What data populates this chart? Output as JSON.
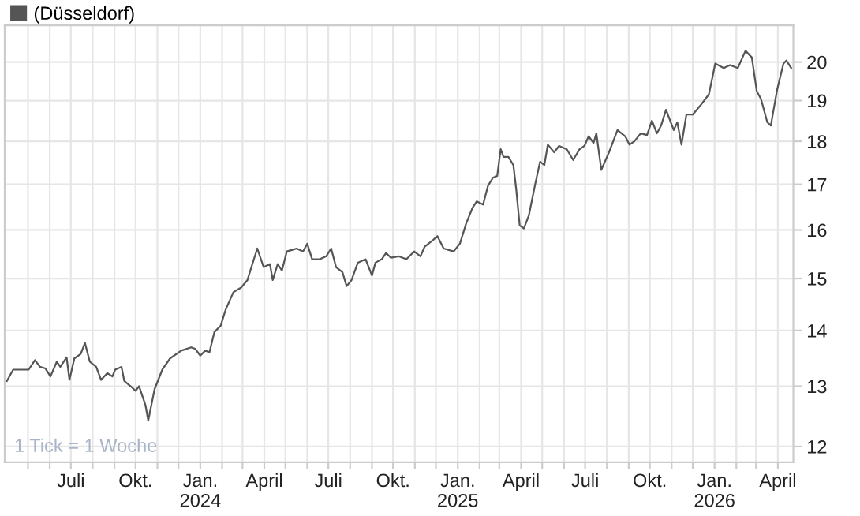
{
  "chart_data": {
    "type": "line",
    "log": "y",
    "grid": true,
    "legend": "top left",
    "marker": "none",
    "line_style": "solid",
    "annotations": [
      "1 Tick = 1 Woche"
    ],
    "xlim": [
      "2023-03-29",
      "2026-04-23"
    ],
    "ylim": [
      11.75,
      21.0
    ],
    "yticks": [
      12,
      13,
      14,
      15,
      16,
      17,
      18,
      19,
      20
    ],
    "xticks": [
      {
        "value": "2023-05-01",
        "label": null
      },
      {
        "value": "2023-06-01",
        "label": null
      },
      {
        "value": "2023-07-01",
        "label": "Juli"
      },
      {
        "value": "2023-08-01",
        "label": null
      },
      {
        "value": "2023-09-01",
        "label": null
      },
      {
        "value": "2023-10-01",
        "label": "Okt."
      },
      {
        "value": "2023-11-01",
        "label": null
      },
      {
        "value": "2023-12-01",
        "label": null
      },
      {
        "value": "2024-01-01",
        "label": "Jan.\n2024"
      },
      {
        "value": "2024-02-01",
        "label": null
      },
      {
        "value": "2024-03-01",
        "label": null
      },
      {
        "value": "2024-04-01",
        "label": "April"
      },
      {
        "value": "2024-05-01",
        "label": null
      },
      {
        "value": "2024-06-01",
        "label": null
      },
      {
        "value": "2024-07-01",
        "label": "Juli"
      },
      {
        "value": "2024-08-01",
        "label": null
      },
      {
        "value": "2024-09-01",
        "label": null
      },
      {
        "value": "2024-10-01",
        "label": "Okt."
      },
      {
        "value": "2024-11-01",
        "label": null
      },
      {
        "value": "2024-12-01",
        "label": null
      },
      {
        "value": "2025-01-01",
        "label": "Jan.\n2025"
      },
      {
        "value": "2025-02-01",
        "label": null
      },
      {
        "value": "2025-03-01",
        "label": null
      },
      {
        "value": "2025-04-01",
        "label": "April"
      },
      {
        "value": "2025-05-01",
        "label": null
      },
      {
        "value": "2025-06-01",
        "label": null
      },
      {
        "value": "2025-07-01",
        "label": "Juli"
      },
      {
        "value": "2025-08-01",
        "label": null
      },
      {
        "value": "2025-09-01",
        "label": null
      },
      {
        "value": "2025-10-01",
        "label": "Okt."
      },
      {
        "value": "2025-11-01",
        "label": null
      },
      {
        "value": "2025-12-01",
        "label": null
      },
      {
        "value": "2026-01-01",
        "label": "Jan.\n2026"
      },
      {
        "value": "2026-02-01",
        "label": null
      },
      {
        "value": "2026-03-01",
        "label": null
      },
      {
        "value": "2026-04-01",
        "label": "April"
      }
    ],
    "series": [
      {
        "name": "(Düsseldorf)",
        "color": "#555555",
        "x": [
          "2023-04-01",
          "2023-04-10",
          "2023-04-26",
          "2023-05-02",
          "2023-05-11",
          "2023-05-18",
          "2023-05-26",
          "2023-06-02",
          "2023-06-11",
          "2023-06-16",
          "2023-06-25",
          "2023-06-29",
          "2023-07-06",
          "2023-07-15",
          "2023-07-21",
          "2023-07-28",
          "2023-08-06",
          "2023-08-13",
          "2023-08-22",
          "2023-08-29",
          "2023-09-02",
          "2023-09-11",
          "2023-09-15",
          "2023-09-24",
          "2023-10-01",
          "2023-10-06",
          "2023-10-15",
          "2023-10-19",
          "2023-10-28",
          "2023-11-08",
          "2023-11-19",
          "2023-12-05",
          "2023-12-19",
          "2023-12-25",
          "2024-01-01",
          "2024-01-08",
          "2024-01-14",
          "2024-01-21",
          "2024-01-30",
          "2024-02-06",
          "2024-02-17",
          "2024-02-28",
          "2024-03-08",
          "2024-03-15",
          "2024-03-22",
          "2024-03-31",
          "2024-04-09",
          "2024-04-13",
          "2024-04-20",
          "2024-04-26",
          "2024-05-03",
          "2024-05-10",
          "2024-05-17",
          "2024-05-26",
          "2024-06-01",
          "2024-06-08",
          "2024-06-19",
          "2024-06-28",
          "2024-07-05",
          "2024-07-12",
          "2024-07-21",
          "2024-07-27",
          "2024-08-03",
          "2024-08-12",
          "2024-08-23",
          "2024-09-01",
          "2024-09-06",
          "2024-09-15",
          "2024-09-21",
          "2024-09-28",
          "2024-10-09",
          "2024-10-20",
          "2024-10-31",
          "2024-11-09",
          "2024-11-15",
          "2024-11-27",
          "2024-12-03",
          "2024-12-12",
          "2024-12-26",
          "2025-01-04",
          "2025-01-13",
          "2025-01-22",
          "2025-01-28",
          "2025-02-06",
          "2025-02-13",
          "2025-02-20",
          "2025-02-26",
          "2025-03-03",
          "2025-03-07",
          "2025-03-14",
          "2025-03-21",
          "2025-03-25",
          "2025-03-30",
          "2025-04-05",
          "2025-04-12",
          "2025-04-21",
          "2025-04-28",
          "2025-05-04",
          "2025-05-09",
          "2025-05-18",
          "2025-05-25",
          "2025-06-05",
          "2025-06-14",
          "2025-06-23",
          "2025-06-30",
          "2025-07-06",
          "2025-07-13",
          "2025-07-17",
          "2025-07-24",
          "2025-08-04",
          "2025-08-16",
          "2025-08-27",
          "2025-09-02",
          "2025-09-09",
          "2025-09-18",
          "2025-09-27",
          "2025-10-04",
          "2025-10-11",
          "2025-10-17",
          "2025-10-24",
          "2025-11-04",
          "2025-11-09",
          "2025-11-15",
          "2025-11-22",
          "2025-12-01",
          "2025-12-12",
          "2025-12-24",
          "2026-01-02",
          "2026-01-14",
          "2026-01-23",
          "2026-02-03",
          "2026-02-14",
          "2026-02-23",
          "2026-03-02",
          "2026-03-08",
          "2026-03-17",
          "2026-03-22",
          "2026-03-31",
          "2026-04-09",
          "2026-04-13",
          "2026-04-20"
        ],
        "values": [
          13.09,
          13.29,
          13.29,
          13.29,
          13.46,
          13.34,
          13.31,
          13.17,
          13.43,
          13.34,
          13.51,
          13.11,
          13.49,
          13.57,
          13.77,
          13.43,
          13.34,
          13.11,
          13.23,
          13.17,
          13.29,
          13.34,
          13.09,
          13.0,
          12.92,
          13.0,
          12.68,
          12.42,
          12.95,
          13.29,
          13.49,
          13.63,
          13.69,
          13.66,
          13.54,
          13.63,
          13.6,
          13.97,
          14.09,
          14.39,
          14.73,
          14.82,
          14.97,
          15.29,
          15.61,
          15.23,
          15.29,
          14.97,
          15.29,
          15.16,
          15.55,
          15.58,
          15.61,
          15.55,
          15.71,
          15.39,
          15.39,
          15.45,
          15.61,
          15.23,
          15.13,
          14.85,
          14.97,
          15.32,
          15.39,
          15.06,
          15.32,
          15.39,
          15.52,
          15.42,
          15.45,
          15.39,
          15.55,
          15.45,
          15.65,
          15.79,
          15.87,
          15.61,
          15.55,
          15.71,
          16.14,
          16.48,
          16.62,
          16.55,
          16.97,
          17.15,
          17.19,
          17.81,
          17.63,
          17.63,
          17.44,
          16.9,
          16.1,
          16.03,
          16.31,
          17.0,
          17.52,
          17.44,
          17.92,
          17.74,
          17.89,
          17.81,
          17.56,
          17.81,
          17.89,
          18.12,
          17.96,
          18.19,
          17.33,
          17.74,
          18.27,
          18.12,
          17.92,
          18.0,
          18.19,
          18.15,
          18.5,
          18.19,
          18.38,
          18.77,
          18.27,
          18.46,
          17.92,
          18.65,
          18.65,
          18.88,
          19.16,
          19.96,
          19.84,
          19.92,
          19.84,
          20.3,
          20.12,
          19.24,
          19.04,
          18.46,
          18.38,
          19.28,
          19.96,
          20.04,
          19.84
        ]
      }
    ]
  }
}
